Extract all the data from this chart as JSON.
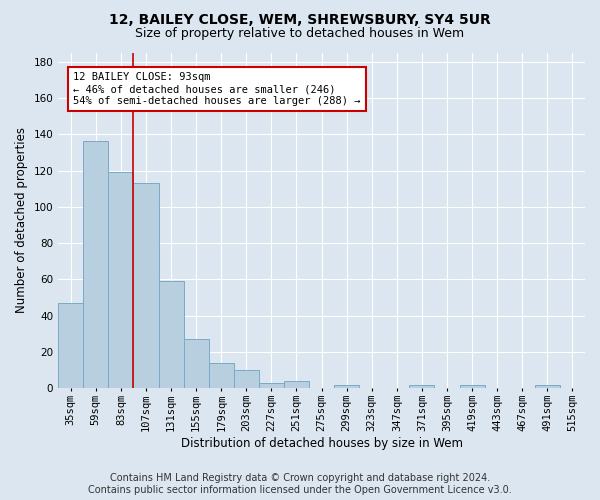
{
  "title": "12, BAILEY CLOSE, WEM, SHREWSBURY, SY4 5UR",
  "subtitle": "Size of property relative to detached houses in Wem",
  "xlabel": "Distribution of detached houses by size in Wem",
  "ylabel": "Number of detached properties",
  "footer_line1": "Contains HM Land Registry data © Crown copyright and database right 2024.",
  "footer_line2": "Contains public sector information licensed under the Open Government Licence v3.0.",
  "categories": [
    "35sqm",
    "59sqm",
    "83sqm",
    "107sqm",
    "131sqm",
    "155sqm",
    "179sqm",
    "203sqm",
    "227sqm",
    "251sqm",
    "275sqm",
    "299sqm",
    "323sqm",
    "347sqm",
    "371sqm",
    "395sqm",
    "419sqm",
    "443sqm",
    "467sqm",
    "491sqm",
    "515sqm"
  ],
  "values": [
    47,
    136,
    119,
    113,
    59,
    27,
    14,
    10,
    3,
    4,
    0,
    2,
    0,
    0,
    2,
    0,
    2,
    0,
    0,
    2,
    0
  ],
  "bar_color": "#b8cfe0",
  "bar_edge_color": "#7aaac8",
  "bar_edge_width": 0.7,
  "property_line_x": 2.5,
  "annotation_text_line1": "12 BAILEY CLOSE: 93sqm",
  "annotation_text_line2": "← 46% of detached houses are smaller (246)",
  "annotation_text_line3": "54% of semi-detached houses are larger (288) →",
  "annotation_box_color": "#cc0000",
  "annotation_text_color": "#000000",
  "ylim": [
    0,
    185
  ],
  "yticks": [
    0,
    20,
    40,
    60,
    80,
    100,
    120,
    140,
    160,
    180
  ],
  "bg_color": "#dce6f0",
  "plot_bg_color": "#dce6f0",
  "grid_color": "#ffffff",
  "title_fontsize": 10,
  "subtitle_fontsize": 9,
  "axis_label_fontsize": 8.5,
  "tick_fontsize": 7.5,
  "footer_fontsize": 7.0,
  "annotation_fontsize": 7.5
}
